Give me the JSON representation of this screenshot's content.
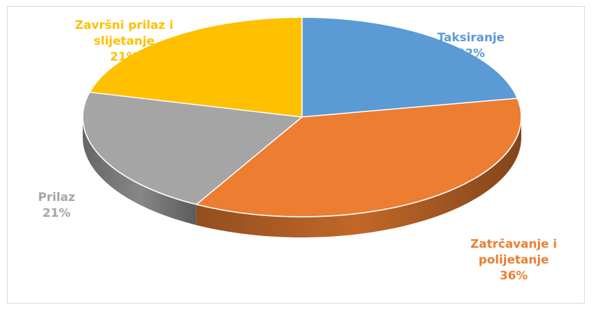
{
  "chart_data": {
    "type": "pie",
    "title": "",
    "style": "3d",
    "slices": [
      {
        "label_lines": [
          "Taksiranje"
        ],
        "value": 22,
        "pct_label": "22%",
        "color": "#5b9bd5"
      },
      {
        "label_lines": [
          "Zatrčavanje i",
          "polijetanje"
        ],
        "value": 36,
        "pct_label": "36%",
        "color": "#ed7d31"
      },
      {
        "label_lines": [
          "Prilaz"
        ],
        "value": 21,
        "pct_label": "21%",
        "color": "#a5a5a5"
      },
      {
        "label_lines": [
          "Završni prilaz i",
          "slijetanje"
        ],
        "value": 21,
        "pct_label": "21%",
        "color": "#ffc000"
      }
    ],
    "legend": "none",
    "data_labels": "outside"
  }
}
